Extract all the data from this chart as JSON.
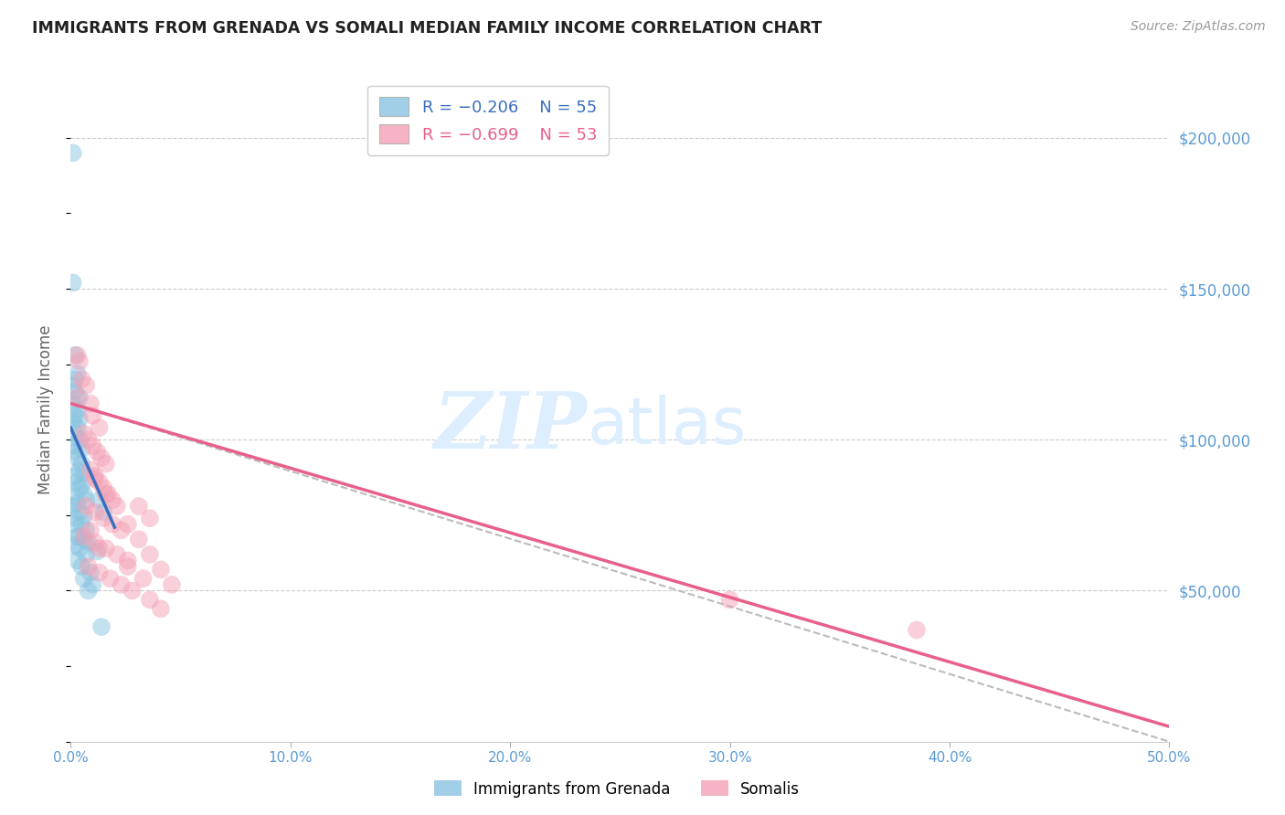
{
  "title": "IMMIGRANTS FROM GRENADA VS SOMALI MEDIAN FAMILY INCOME CORRELATION CHART",
  "source": "Source: ZipAtlas.com",
  "ylabel": "Median Family Income",
  "xlim": [
    0.0,
    0.5
  ],
  "ylim": [
    0,
    220000
  ],
  "xtick_labels": [
    "0.0%",
    "10.0%",
    "20.0%",
    "30.0%",
    "40.0%",
    "50.0%"
  ],
  "xtick_values": [
    0.0,
    0.1,
    0.2,
    0.3,
    0.4,
    0.5
  ],
  "right_ytick_labels": [
    "$200,000",
    "$150,000",
    "$100,000",
    "$50,000"
  ],
  "right_ytick_values": [
    200000,
    150000,
    100000,
    50000
  ],
  "legend_r1": "R = -0.206",
  "legend_n1": "N = 55",
  "legend_r2": "R = -0.699",
  "legend_n2": "N = 53",
  "legend_label1": "Immigrants from Grenada",
  "legend_label2": "Somalis",
  "color_blue": "#89c4e1",
  "color_pink": "#f4a0b5",
  "color_blue_line": "#3a6fbf",
  "color_pink_line": "#e8608a",
  "color_dashed": "#bbbbbb",
  "color_title": "#222222",
  "color_source": "#999999",
  "color_axis_right": "#5b9bd5",
  "color_axis_bottom": "#5b9bd5",
  "watermark_zip": "ZIP",
  "watermark_atlas": "atlas",
  "watermark_color": "#ddeeff",
  "background_color": "#ffffff",
  "scatter_blue": [
    [
      0.001,
      195000
    ],
    [
      0.001,
      152000
    ],
    [
      0.002,
      128000
    ],
    [
      0.003,
      122000
    ],
    [
      0.002,
      120000
    ],
    [
      0.001,
      118000
    ],
    [
      0.002,
      116000
    ],
    [
      0.004,
      114000
    ],
    [
      0.001,
      112000
    ],
    [
      0.003,
      110000
    ],
    [
      0.002,
      108000
    ],
    [
      0.004,
      107000
    ],
    [
      0.001,
      106000
    ],
    [
      0.003,
      104000
    ],
    [
      0.002,
      102000
    ],
    [
      0.004,
      100000
    ],
    [
      0.001,
      98000
    ],
    [
      0.005,
      97000
    ],
    [
      0.002,
      96000
    ],
    [
      0.003,
      94000
    ],
    [
      0.005,
      92000
    ],
    [
      0.004,
      90000
    ],
    [
      0.006,
      89000
    ],
    [
      0.002,
      88000
    ],
    [
      0.003,
      86000
    ],
    [
      0.005,
      85000
    ],
    [
      0.004,
      84000
    ],
    [
      0.006,
      82000
    ],
    [
      0.002,
      81000
    ],
    [
      0.007,
      80000
    ],
    [
      0.003,
      79000
    ],
    [
      0.001,
      78000
    ],
    [
      0.004,
      76000
    ],
    [
      0.006,
      75000
    ],
    [
      0.002,
      74000
    ],
    [
      0.005,
      72000
    ],
    [
      0.007,
      70000
    ],
    [
      0.003,
      68000
    ],
    [
      0.006,
      67000
    ],
    [
      0.008,
      66000
    ],
    [
      0.002,
      65000
    ],
    [
      0.004,
      64000
    ],
    [
      0.007,
      62000
    ],
    [
      0.003,
      60000
    ],
    [
      0.005,
      58000
    ],
    [
      0.009,
      56000
    ],
    [
      0.006,
      54000
    ],
    [
      0.01,
      52000
    ],
    [
      0.008,
      50000
    ],
    [
      0.002,
      72000
    ],
    [
      0.004,
      68000
    ],
    [
      0.012,
      63000
    ],
    [
      0.013,
      80000
    ],
    [
      0.015,
      76000
    ],
    [
      0.014,
      38000
    ]
  ],
  "scatter_pink": [
    [
      0.003,
      128000
    ],
    [
      0.004,
      126000
    ],
    [
      0.005,
      120000
    ],
    [
      0.007,
      118000
    ],
    [
      0.003,
      114000
    ],
    [
      0.009,
      112000
    ],
    [
      0.01,
      108000
    ],
    [
      0.013,
      104000
    ],
    [
      0.006,
      102000
    ],
    [
      0.008,
      100000
    ],
    [
      0.01,
      98000
    ],
    [
      0.012,
      96000
    ],
    [
      0.014,
      94000
    ],
    [
      0.016,
      92000
    ],
    [
      0.009,
      90000
    ],
    [
      0.011,
      88000
    ],
    [
      0.013,
      86000
    ],
    [
      0.015,
      84000
    ],
    [
      0.017,
      82000
    ],
    [
      0.019,
      80000
    ],
    [
      0.007,
      78000
    ],
    [
      0.011,
      76000
    ],
    [
      0.015,
      74000
    ],
    [
      0.019,
      72000
    ],
    [
      0.023,
      70000
    ],
    [
      0.006,
      68000
    ],
    [
      0.011,
      66000
    ],
    [
      0.016,
      64000
    ],
    [
      0.021,
      62000
    ],
    [
      0.026,
      60000
    ],
    [
      0.008,
      58000
    ],
    [
      0.013,
      56000
    ],
    [
      0.018,
      54000
    ],
    [
      0.023,
      52000
    ],
    [
      0.028,
      50000
    ],
    [
      0.031,
      78000
    ],
    [
      0.036,
      74000
    ],
    [
      0.011,
      87000
    ],
    [
      0.016,
      82000
    ],
    [
      0.021,
      78000
    ],
    [
      0.026,
      72000
    ],
    [
      0.031,
      67000
    ],
    [
      0.036,
      62000
    ],
    [
      0.041,
      57000
    ],
    [
      0.046,
      52000
    ],
    [
      0.036,
      47000
    ],
    [
      0.041,
      44000
    ],
    [
      0.3,
      47000
    ],
    [
      0.385,
      37000
    ],
    [
      0.009,
      70000
    ],
    [
      0.013,
      64000
    ],
    [
      0.026,
      58000
    ],
    [
      0.033,
      54000
    ]
  ],
  "blue_line_x": [
    0.0,
    0.02
  ],
  "blue_line_y": [
    104000,
    71000
  ],
  "pink_line_x": [
    0.0,
    0.5
  ],
  "pink_line_y": [
    112000,
    5000
  ],
  "dashed_line_x": [
    0.0,
    0.5
  ],
  "dashed_line_y": [
    112000,
    0
  ]
}
